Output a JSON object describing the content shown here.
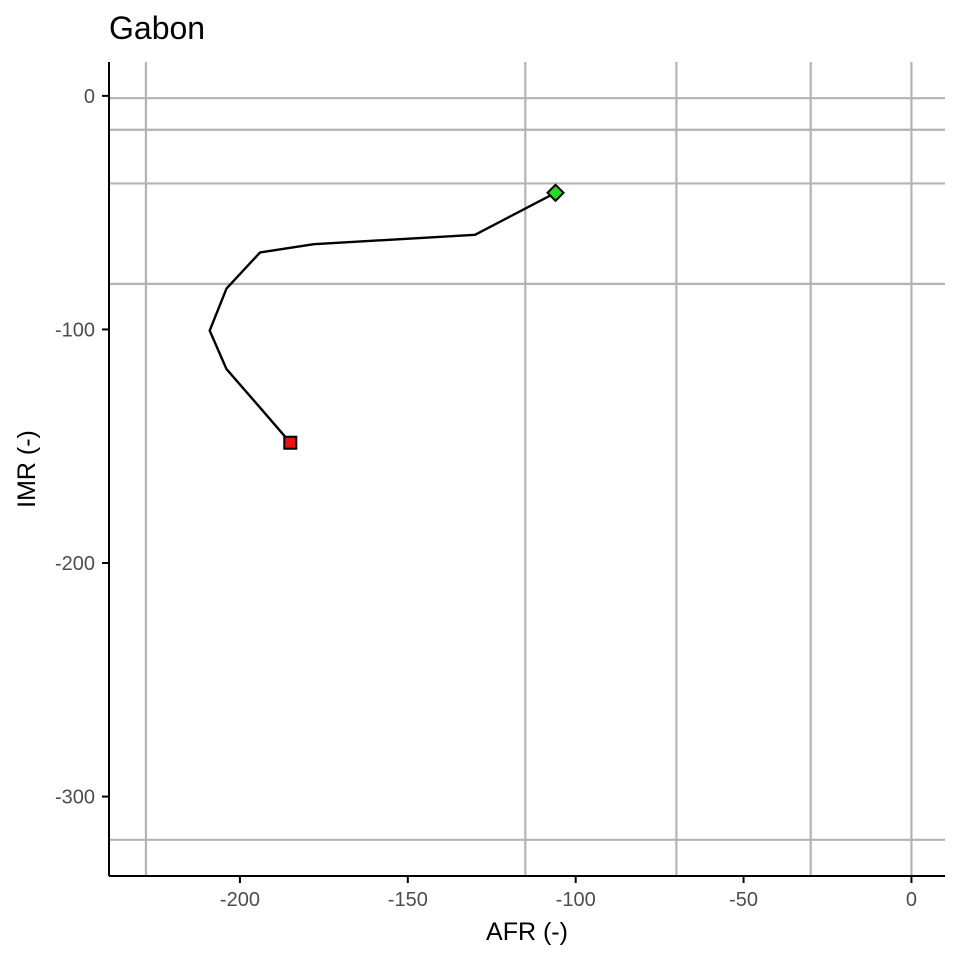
{
  "chart_data": {
    "type": "line",
    "title": "Gabon",
    "xlabel": "AFR (-)",
    "ylabel": "IMR (-)",
    "xlim": [
      -239,
      10
    ],
    "ylim": [
      -334,
      14.5
    ],
    "x_ticks": [
      -200,
      -150,
      -100,
      -50,
      0
    ],
    "x_tick_labels": [
      "-200",
      "-150",
      "-100",
      "-50",
      "0"
    ],
    "y_ticks": [
      0,
      -100,
      -200,
      -300
    ],
    "y_tick_labels": [
      "0",
      "-100",
      "-200",
      "-300"
    ],
    "reference_lines": {
      "vertical": [
        -228,
        -115,
        -70,
        -30,
        0
      ],
      "horizontal": [
        -1,
        -14.5,
        -37.5,
        -80.5,
        -318.5
      ]
    },
    "grid": false,
    "series": [
      {
        "x": [
          -106,
          -130,
          -178,
          -194,
          -204,
          -209,
          -204,
          -194,
          -185
        ],
        "y": [
          -41.5,
          -59.5,
          -63.5,
          -67,
          -82.5,
          -100.5,
          -117,
          -133.5,
          -148.5
        ]
      }
    ],
    "markers": [
      {
        "shape": "diamond",
        "x": -106,
        "y": -41.5,
        "color": "#22dd22"
      },
      {
        "shape": "square",
        "x": -185,
        "y": -148.5,
        "color": "#ee1111"
      }
    ],
    "colors": {
      "reference_line": "#b3b3b3",
      "line": "#000000",
      "tick_label": "#4d4d4d"
    }
  }
}
